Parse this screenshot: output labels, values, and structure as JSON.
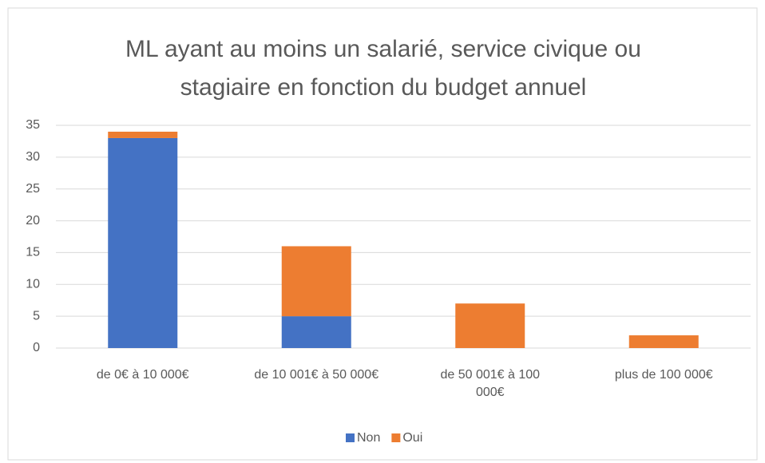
{
  "chart_data": {
    "type": "stacked_bar",
    "title": "ML ayant au moins un salarié, service civique ou stagiaire en fonction du budget annuel",
    "categories": [
      "de 0€ à 10 000€",
      "de 10 001€ à 50 000€",
      "de 50 001€ à 100 000€",
      "plus de 100 000€"
    ],
    "series": [
      {
        "name": "Non",
        "color": "#4472c4",
        "values": [
          33,
          5,
          0,
          0
        ]
      },
      {
        "name": "Oui",
        "color": "#ed7d31",
        "values": [
          1,
          11,
          7,
          2
        ]
      }
    ],
    "ylim": [
      0,
      35
    ],
    "yticks": [
      0,
      5,
      10,
      15,
      20,
      25,
      30,
      35
    ],
    "grid": true,
    "legend": "bottom"
  }
}
